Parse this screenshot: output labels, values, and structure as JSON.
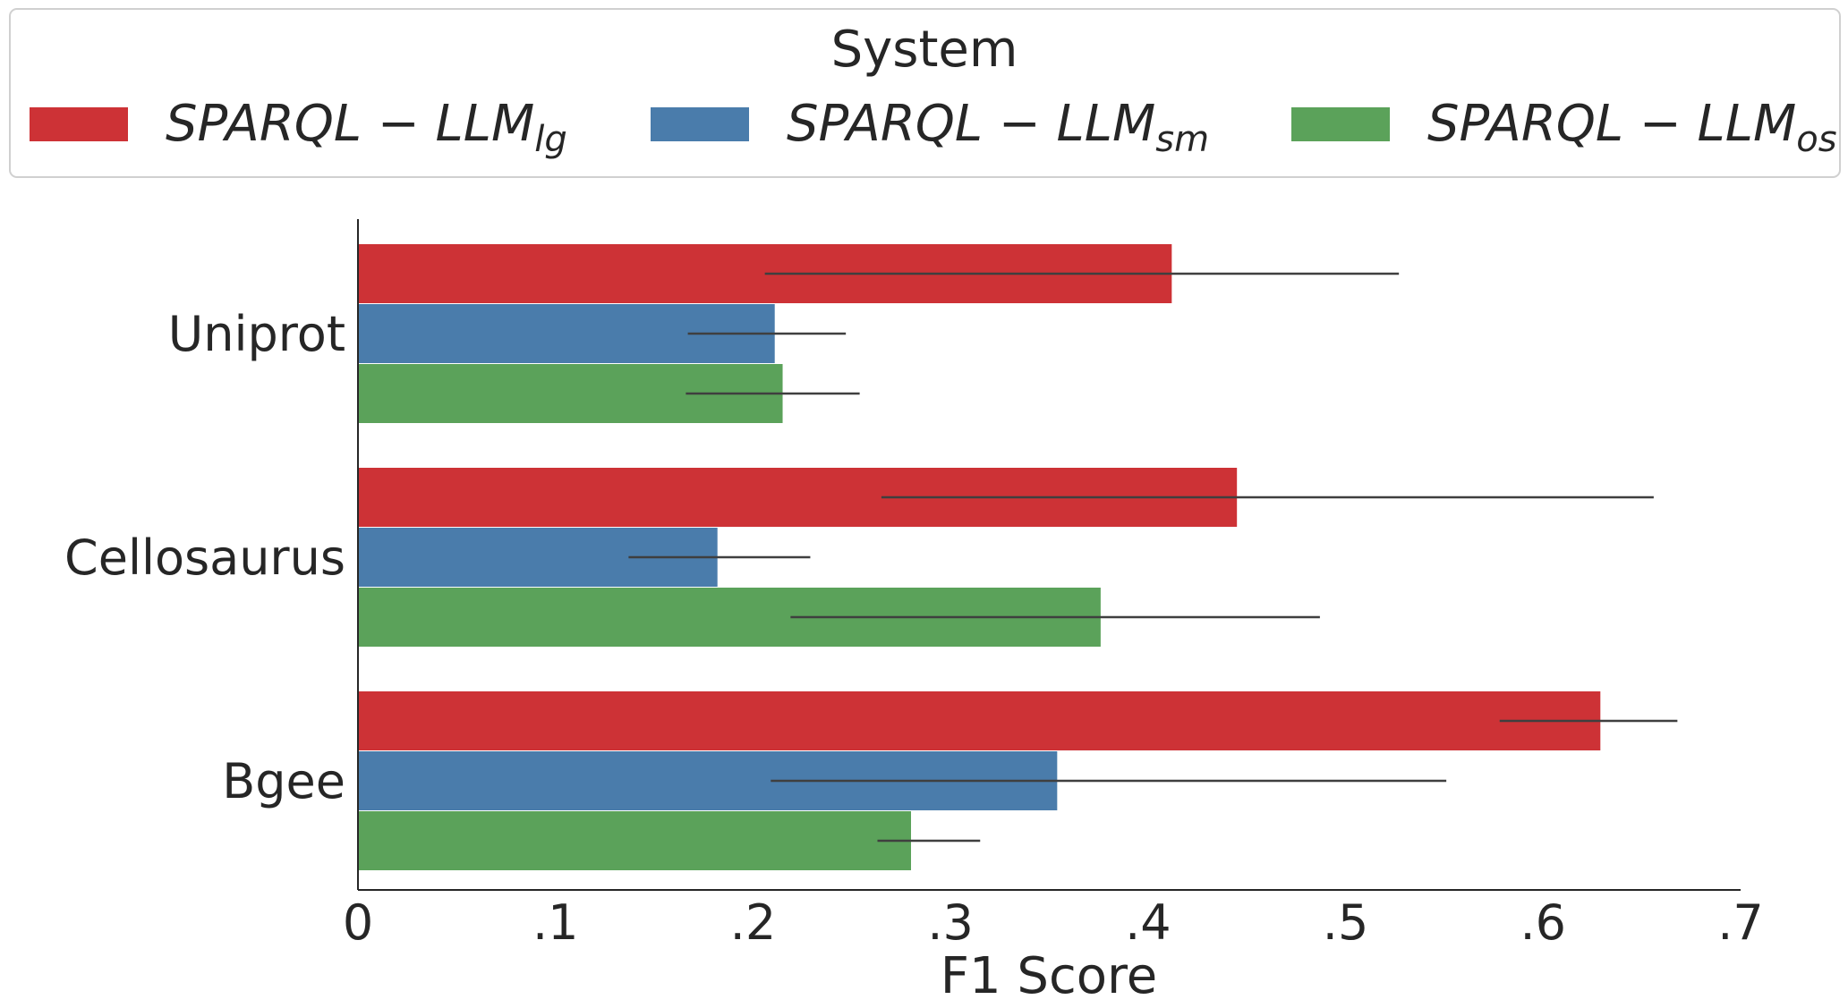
{
  "chart_data": {
    "type": "bar",
    "orientation": "horizontal",
    "legend": {
      "title": "System",
      "placement": "top",
      "entries": [
        {
          "base": "SPARQL − LLM",
          "sub": "lg"
        },
        {
          "base": "SPARQL − LLM",
          "sub": "sm"
        },
        {
          "base": "SPARQL − LLM",
          "sub": "os"
        }
      ]
    },
    "categories": [
      "Uniprot",
      "Cellosaurus",
      "Bgee"
    ],
    "series": [
      {
        "name": "SPARQL-LLM_lg",
        "color": "#cd3236",
        "values": [
          0.412,
          0.445,
          0.629
        ],
        "error_low": [
          0.206,
          0.265,
          0.578
        ],
        "error_high": [
          0.527,
          0.656,
          0.668
        ]
      },
      {
        "name": "SPARQL-LLM_sm",
        "color": "#4a7cab",
        "values": [
          0.211,
          0.182,
          0.354
        ],
        "error_low": [
          0.167,
          0.137,
          0.209
        ],
        "error_high": [
          0.247,
          0.229,
          0.551
        ]
      },
      {
        "name": "SPARQL-LLM_os",
        "color": "#5ba25a",
        "values": [
          0.215,
          0.376,
          0.28
        ],
        "error_low": [
          0.166,
          0.219,
          0.263
        ],
        "error_high": [
          0.254,
          0.487,
          0.315
        ]
      }
    ],
    "xlabel": "F1 Score",
    "ylabel": "",
    "xlim": [
      0,
      0.7
    ],
    "xticks": [
      0,
      0.1,
      0.2,
      0.3,
      0.4,
      0.5,
      0.6,
      0.7
    ],
    "xtick_labels": [
      "0",
      ".1",
      ".2",
      ".3",
      ".4",
      ".5",
      ".6",
      ".7"
    ],
    "grid": false
  }
}
